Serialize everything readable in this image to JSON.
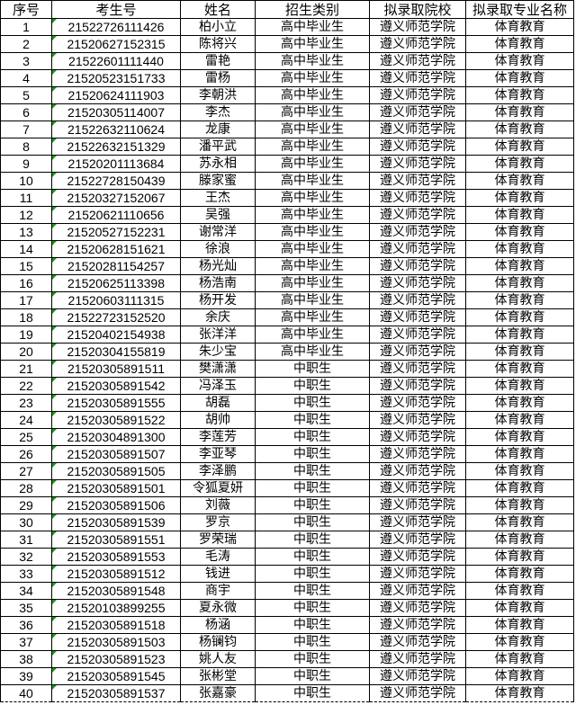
{
  "headers": [
    "序号",
    "考生号",
    "姓名",
    "招生类别",
    "拟录取院校",
    "拟录取专业名称"
  ],
  "rows": [
    [
      "1",
      "21522726111426",
      "柏小立",
      "高中毕业生",
      "遵义师范学院",
      "体育教育"
    ],
    [
      "2",
      "21520627152315",
      "陈将兴",
      "高中毕业生",
      "遵义师范学院",
      "体育教育"
    ],
    [
      "3",
      "21522601111440",
      "雷艳",
      "高中毕业生",
      "遵义师范学院",
      "体育教育"
    ],
    [
      "4",
      "21520523151733",
      "雷杨",
      "高中毕业生",
      "遵义师范学院",
      "体育教育"
    ],
    [
      "5",
      "21520624111903",
      "李朝洪",
      "高中毕业生",
      "遵义师范学院",
      "体育教育"
    ],
    [
      "6",
      "21520305114007",
      "李杰",
      "高中毕业生",
      "遵义师范学院",
      "体育教育"
    ],
    [
      "7",
      "21522632110624",
      "龙康",
      "高中毕业生",
      "遵义师范学院",
      "体育教育"
    ],
    [
      "8",
      "21522632151329",
      "潘平武",
      "高中毕业生",
      "遵义师范学院",
      "体育教育"
    ],
    [
      "9",
      "21520201113684",
      "苏永相",
      "高中毕业生",
      "遵义师范学院",
      "体育教育"
    ],
    [
      "10",
      "21522728150439",
      "滕家蜜",
      "高中毕业生",
      "遵义师范学院",
      "体育教育"
    ],
    [
      "11",
      "21520327152067",
      "王杰",
      "高中毕业生",
      "遵义师范学院",
      "体育教育"
    ],
    [
      "12",
      "21520621110656",
      "吴强",
      "高中毕业生",
      "遵义师范学院",
      "体育教育"
    ],
    [
      "13",
      "21520527152231",
      "谢常洋",
      "高中毕业生",
      "遵义师范学院",
      "体育教育"
    ],
    [
      "14",
      "21520628151621",
      "徐浪",
      "高中毕业生",
      "遵义师范学院",
      "体育教育"
    ],
    [
      "15",
      "21520281154257",
      "杨光灿",
      "高中毕业生",
      "遵义师范学院",
      "体育教育"
    ],
    [
      "16",
      "21520625113398",
      "杨浩南",
      "高中毕业生",
      "遵义师范学院",
      "体育教育"
    ],
    [
      "17",
      "21520603111315",
      "杨开发",
      "高中毕业生",
      "遵义师范学院",
      "体育教育"
    ],
    [
      "18",
      "21522723152520",
      "余庆",
      "高中毕业生",
      "遵义师范学院",
      "体育教育"
    ],
    [
      "19",
      "21520402154938",
      "张洋洋",
      "高中毕业生",
      "遵义师范学院",
      "体育教育"
    ],
    [
      "20",
      "21520304155819",
      "朱少宝",
      "高中毕业生",
      "遵义师范学院",
      "体育教育"
    ],
    [
      "21",
      "21520305891511",
      "樊潇潇",
      "中职生",
      "遵义师范学院",
      "体育教育"
    ],
    [
      "22",
      "21520305891542",
      "冯泽玉",
      "中职生",
      "遵义师范学院",
      "体育教育"
    ],
    [
      "23",
      "21520305891555",
      "胡磊",
      "中职生",
      "遵义师范学院",
      "体育教育"
    ],
    [
      "24",
      "21520305891522",
      "胡帅",
      "中职生",
      "遵义师范学院",
      "体育教育"
    ],
    [
      "25",
      "21520304891300",
      "李莲芳",
      "中职生",
      "遵义师范学院",
      "体育教育"
    ],
    [
      "26",
      "21520305891507",
      "李亚琴",
      "中职生",
      "遵义师范学院",
      "体育教育"
    ],
    [
      "27",
      "21520305891505",
      "李泽鹏",
      "中职生",
      "遵义师范学院",
      "体育教育"
    ],
    [
      "28",
      "21520305891501",
      "令狐夏妍",
      "中职生",
      "遵义师范学院",
      "体育教育"
    ],
    [
      "29",
      "21520305891506",
      "刘薇",
      "中职生",
      "遵义师范学院",
      "体育教育"
    ],
    [
      "30",
      "21520305891539",
      "罗京",
      "中职生",
      "遵义师范学院",
      "体育教育"
    ],
    [
      "31",
      "21520305891551",
      "罗荣瑞",
      "中职生",
      "遵义师范学院",
      "体育教育"
    ],
    [
      "32",
      "21520305891553",
      "毛涛",
      "中职生",
      "遵义师范学院",
      "体育教育"
    ],
    [
      "33",
      "21520305891512",
      "钱进",
      "中职生",
      "遵义师范学院",
      "体育教育"
    ],
    [
      "34",
      "21520305891548",
      "商宇",
      "中职生",
      "遵义师范学院",
      "体育教育"
    ],
    [
      "35",
      "21520103899255",
      "夏永微",
      "中职生",
      "遵义师范学院",
      "体育教育"
    ],
    [
      "36",
      "21520305891518",
      "杨涵",
      "中职生",
      "遵义师范学院",
      "体育教育"
    ],
    [
      "37",
      "21520305891503",
      "杨镧钧",
      "中职生",
      "遵义师范学院",
      "体育教育"
    ],
    [
      "38",
      "21520305891523",
      "姚人友",
      "中职生",
      "遵义师范学院",
      "体育教育"
    ],
    [
      "39",
      "21520305891545",
      "张彬堂",
      "中职生",
      "遵义师范学院",
      "体育教育"
    ],
    [
      "40",
      "21520305891537",
      "张嘉豪",
      "中职生",
      "遵义师范学院",
      "体育教育"
    ]
  ]
}
